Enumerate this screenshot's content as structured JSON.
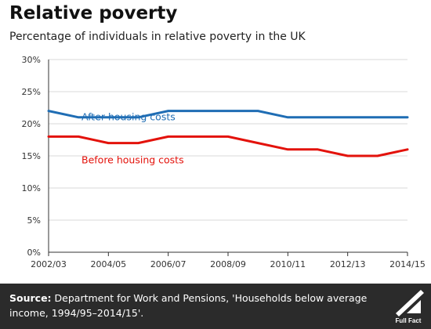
{
  "header": {
    "title": "Relative poverty",
    "subtitle": "Percentage of individuals in relative poverty in the UK"
  },
  "chart_data": {
    "type": "line",
    "title": "Relative poverty",
    "subtitle": "Percentage of individuals in relative poverty in the UK",
    "xlabel": "",
    "ylabel": "",
    "x": [
      "2002/03",
      "2003/04",
      "2004/05",
      "2005/06",
      "2006/07",
      "2007/08",
      "2008/09",
      "2009/10",
      "2010/11",
      "2011/12",
      "2012/13",
      "2013/14",
      "2014/15"
    ],
    "x_tick_labels": [
      "2002/03",
      "2004/05",
      "2006/07",
      "2008/09",
      "2010/11",
      "2012/13",
      "2014/15"
    ],
    "y_tick_labels": [
      "0%",
      "5%",
      "10%",
      "15%",
      "20%",
      "25%",
      "30%"
    ],
    "ylim": [
      0,
      30
    ],
    "grid": "horizontal",
    "series": [
      {
        "name": "After housing costs",
        "color": "#1f6db4",
        "values": [
          22,
          21,
          21,
          21,
          22,
          22,
          22,
          22,
          21,
          21,
          21,
          21,
          21
        ]
      },
      {
        "name": "Before housing costs",
        "color": "#e3120b",
        "values": [
          18,
          18,
          17,
          17,
          18,
          18,
          18,
          17,
          16,
          16,
          15,
          15,
          16
        ]
      }
    ]
  },
  "footer": {
    "source_label": "Source:",
    "source_text": "Department for Work and Pensions, 'Households below average income, 1994/95–2014/15'.",
    "logo_text": "Full Fact"
  },
  "colors": {
    "footer_bg": "#2b2b2b",
    "grid": "#d9d9d9",
    "axis": "#333333"
  }
}
